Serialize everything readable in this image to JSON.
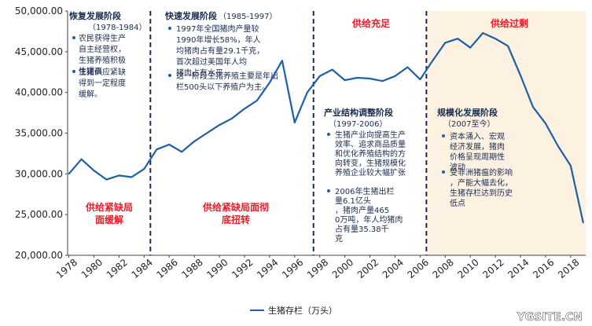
{
  "chart_data": {
    "type": "line",
    "x": [
      1978,
      1979,
      1980,
      1981,
      1982,
      1983,
      1984,
      1985,
      1986,
      1987,
      1988,
      1989,
      1990,
      1991,
      1992,
      1993,
      1994,
      1995,
      1996,
      1997,
      1998,
      1999,
      2000,
      2001,
      2002,
      2003,
      2004,
      2005,
      2006,
      2007,
      2008,
      2009,
      2010,
      2011,
      2012,
      2013,
      2014,
      2015,
      2016,
      2017,
      2018,
      2019
    ],
    "series": [
      {
        "name": "生猪存栏（万头）",
        "color": "#1f5fa6",
        "values": [
          30000,
          31800,
          30400,
          29300,
          29800,
          29600,
          30600,
          33000,
          33600,
          32700,
          34000,
          35000,
          36000,
          36800,
          38000,
          39000,
          41200,
          43900,
          36300,
          40000,
          42000,
          42800,
          41500,
          41800,
          41700,
          41400,
          42000,
          43100,
          41600,
          43900,
          46100,
          46600,
          45500,
          47300,
          46600,
          45700,
          42100,
          38200,
          36200,
          33400,
          31000,
          24000
        ]
      }
    ],
    "ylim": [
      20000,
      50000
    ],
    "y_ticks": [
      "20,000.00",
      "25,000.00",
      "30,000.00",
      "35,000.00",
      "40,000.00",
      "45,000.00",
      "50,000.00"
    ],
    "x_ticks": [
      "1978",
      "1980",
      "1982",
      "1984",
      "1986",
      "1988",
      "1990",
      "1992",
      "1994",
      "1996",
      "1998",
      "2000",
      "2002",
      "2004",
      "2006",
      "2008",
      "2010",
      "2012",
      "2014",
      "2016",
      "2018"
    ],
    "legend_position": "bottom",
    "grid": false,
    "dividers_x": [
      1984.5,
      1997.5,
      2006.5
    ],
    "shaded_region_start": 2006.5,
    "shaded_region_color": "#fdf1e1"
  },
  "legend": {
    "label": "生猪存栏（万头）"
  },
  "watermark": "YGSITE.CN",
  "phases": [
    {
      "title": "恢复发展阶段",
      "period": "（1978-1984）",
      "bullets": [
        "农民获得生产自主经营权，生猪养殖积极性提高",
        "生猪供应紧缺得到一定程度缓解。"
      ],
      "status": "供给紧缺局面缓解"
    },
    {
      "title": "快速发展阶段",
      "period": "（1985-1997）",
      "bullets": [
        "1997年全国猪肉产量较1990年增长58%，年人均猪肉占有量29.1千克，首次超过美国年人均猪肉占有水平",
        "这一阶段生猪养殖主要是年出栏500头以下养殖户为主。"
      ],
      "status": "供给紧缺局面彻底扭转"
    },
    {
      "title": "产业结构调整阶段",
      "period": "（1997-2006）",
      "bullets": [
        "生猪产业向提高生产效率、追求商品质量和优化养殖结构的方向转变，生猪规模化养殖企业较大幅扩张",
        "2006年生猪出栏量6.1亿头，猪肉产量4650万吨，年人均猪肉占有量35.38千克"
      ],
      "status": "供给充足"
    },
    {
      "title": "规模化发展阶段",
      "period": "（2007至今）",
      "bullets": [
        "资本涌入、宏观经济发展，猪肉价格呈现周期性波动",
        "受非洲猪瘟的影响，产能大幅去化，生猪存栏达到历史低点"
      ],
      "status": "供给过剩"
    }
  ]
}
